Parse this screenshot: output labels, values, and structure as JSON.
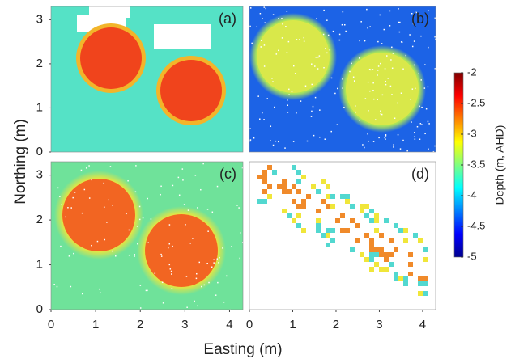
{
  "figure": {
    "xlabel": "Easting (m)",
    "ylabel": "Northing (m)",
    "colorbar": {
      "label": "Depth (m, AHD)",
      "clim": [
        -5,
        -2
      ],
      "cticks": [
        -2,
        -2.5,
        -3,
        -3.5,
        -4,
        -4.5,
        -5
      ],
      "colormap": "jet"
    }
  },
  "chart_data": [
    {
      "type": "heatmap",
      "label": "(a)",
      "xlim": [
        0,
        4.3
      ],
      "ylim": [
        0,
        3.3
      ],
      "yticks": [
        0,
        1,
        2,
        3
      ]
    },
    {
      "type": "heatmap",
      "label": "(b)",
      "xlim": [
        0,
        4.3
      ],
      "ylim": [
        0,
        3.3
      ]
    },
    {
      "type": "heatmap",
      "label": "(c)",
      "xlim": [
        0,
        4.3
      ],
      "ylim": [
        0,
        3.3
      ],
      "xticks": [
        0,
        1,
        2,
        3,
        4
      ],
      "yticks": [
        0,
        1,
        2,
        3
      ]
    },
    {
      "type": "heatmap",
      "label": "(d)",
      "xlim": [
        0,
        4.3
      ],
      "ylim": [
        0,
        3.3
      ],
      "xticks": [
        0,
        1,
        2,
        3,
        4
      ]
    }
  ]
}
